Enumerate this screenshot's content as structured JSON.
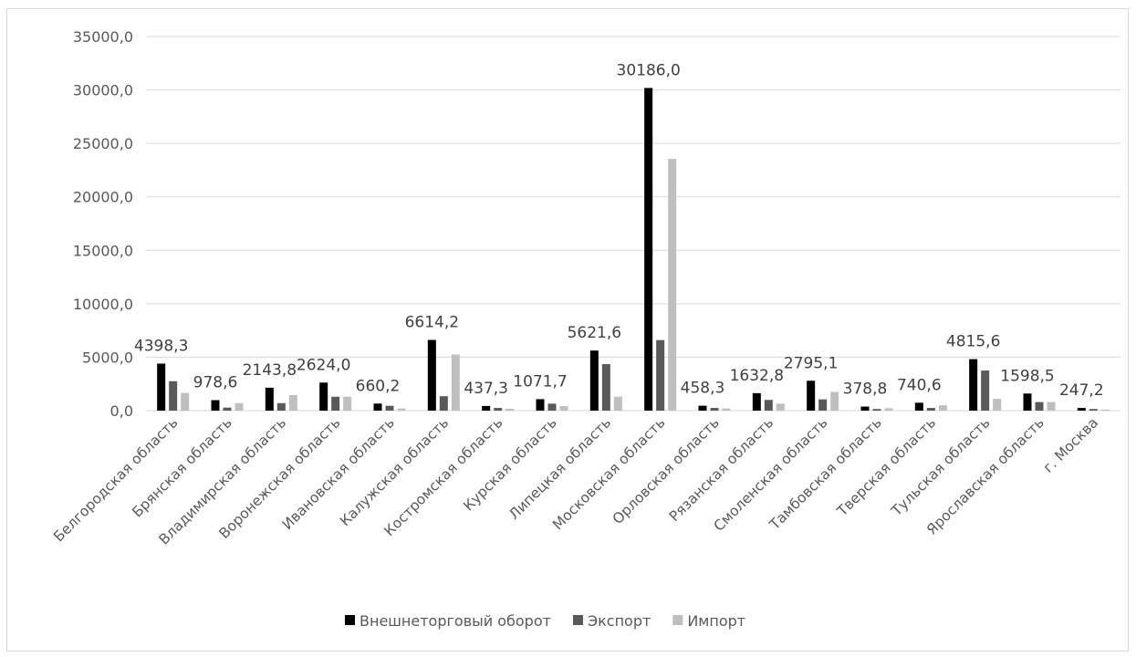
{
  "chart_data": {
    "type": "bar",
    "title": "",
    "xlabel": "",
    "ylabel": "",
    "ylim": [
      0,
      35000
    ],
    "y_ticks": [
      "0,0",
      "5000,0",
      "10000,0",
      "15000,0",
      "20000,0",
      "25000,0",
      "30000,0",
      "35000,0"
    ],
    "grid": true,
    "legend_position": "bottom",
    "categories": [
      "Белгородская область",
      "Брянская область",
      "Владимирская область",
      "Воронежская область",
      "Ивановская область",
      "Калужская область",
      "Костромская область",
      "Курская область",
      "Липецкая область",
      "Московская область",
      "Орловская область",
      "Рязанская область",
      "Смоленская область",
      "Тамбовская область",
      "Тверская область",
      "Тульская область",
      "Ярославская область",
      "г. Москва"
    ],
    "series": [
      {
        "name": "Внешнеторговый оборот",
        "color": "#000000",
        "values": [
          4398.3,
          978.6,
          2143.8,
          2624.0,
          660.2,
          6614.2,
          437.3,
          1071.7,
          5621.6,
          30186.0,
          458.3,
          1632.8,
          2795.1,
          378.8,
          740.6,
          4815.6,
          1598.5,
          247.2
        ]
      },
      {
        "name": "Экспорт",
        "color": "#595959",
        "values": [
          2750,
          280,
          700,
          1300,
          450,
          1350,
          250,
          650,
          4350,
          6600,
          250,
          1000,
          1050,
          150,
          250,
          3750,
          800,
          150
        ]
      },
      {
        "name": "Импорт",
        "color": "#bfbfbf",
        "values": [
          1650,
          700,
          1450,
          1300,
          200,
          5250,
          180,
          420,
          1300,
          23550,
          200,
          650,
          1750,
          220,
          500,
          1100,
          800,
          100
        ]
      }
    ],
    "data_labels": [
      "4398,3",
      "978,6",
      "2143,8",
      "2624,0",
      "660,2",
      "6614,2",
      "437,3",
      "1071,7",
      "5621,6",
      "30186,0",
      "458,3",
      "1632,8",
      "2795,1",
      "378,8",
      "740,6",
      "4815,6",
      "1598,5",
      "247,2"
    ]
  }
}
